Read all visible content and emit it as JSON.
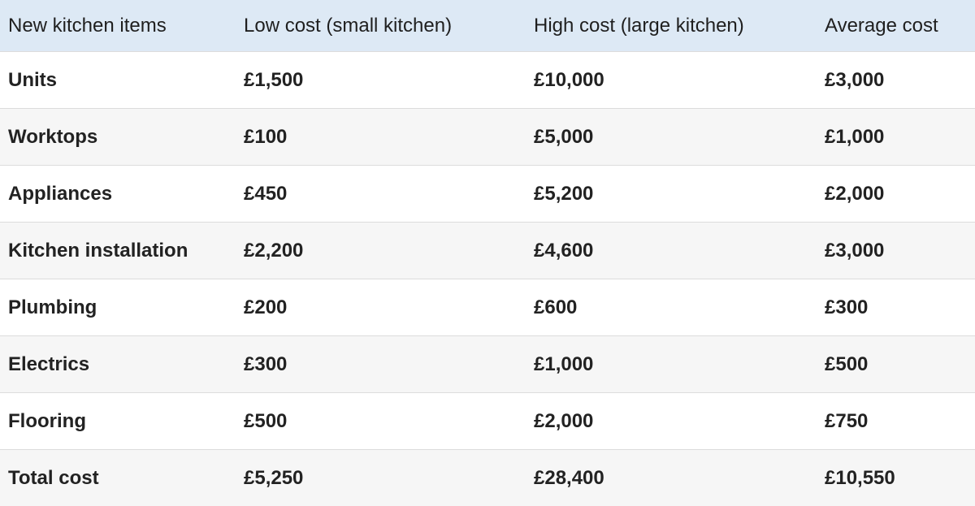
{
  "table": {
    "header": [
      "New kitchen items",
      "Low cost (small kitchen)",
      "High cost (large kitchen)",
      "Average cost"
    ],
    "rows": [
      [
        "Units",
        "£1,500",
        "£10,000",
        "£3,000"
      ],
      [
        "Worktops",
        "£100",
        "£5,000",
        "£1,000"
      ],
      [
        "Appliances",
        "£450",
        "£5,200",
        "£2,000"
      ],
      [
        "Kitchen installation",
        "£2,200",
        "£4,600",
        "£3,000"
      ],
      [
        "Plumbing",
        "£200",
        "£600",
        "£300"
      ],
      [
        "Electrics",
        "£300",
        "£1,000",
        "£500"
      ],
      [
        "Flooring",
        "£500",
        "£2,000",
        "£750"
      ],
      [
        "Total cost",
        "£5,250",
        "£28,400",
        "£10,550"
      ]
    ]
  }
}
